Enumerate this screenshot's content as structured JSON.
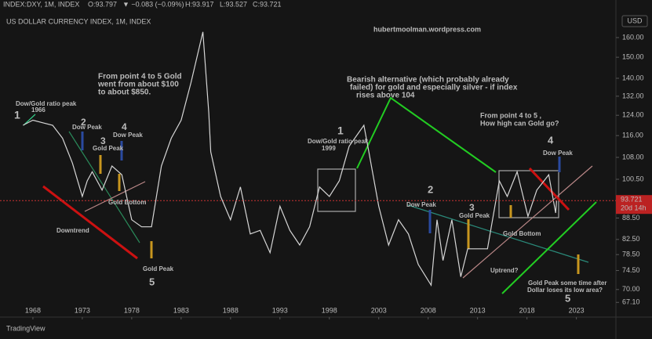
{
  "header": {
    "symbol": "INDEX:DXY, 1M, INDEX",
    "open": "O:93.797",
    "change": "▼ −0.083 (−0.09%)",
    "high": "H:93.917",
    "low": "L:93.527",
    "close": "C:93.721"
  },
  "brand": "TradingView",
  "chart_data": {
    "type": "line",
    "title": "US DOLLAR CURRENCY INDEX, 1M, INDEX",
    "source": "hubertmoolman.wordpress.com",
    "currency": "USD",
    "x": [
      1967,
      1968,
      1969,
      1970,
      1971,
      1972,
      1973,
      1973.5,
      1974,
      1975,
      1976,
      1977,
      1978,
      1979,
      1980,
      1981,
      1982,
      1983,
      1984,
      1985.2,
      1985.8,
      1986,
      1987,
      1988,
      1989,
      1990,
      1991,
      1992,
      1993,
      1994,
      1995,
      1996,
      1997,
      1998,
      1999,
      2000,
      2001.5,
      2002,
      2003,
      2004,
      2005,
      2006,
      2007,
      2008.3,
      2008.9,
      2009.5,
      2010.4,
      2011.3,
      2012,
      2013,
      2014,
      2015.2,
      2016,
      2017,
      2018.1,
      2019,
      2020.2,
      2020.9,
      2021
    ],
    "values": [
      120,
      122,
      121,
      120,
      115,
      106,
      95,
      100,
      103,
      97,
      105,
      102,
      88,
      86,
      86,
      105,
      115,
      122,
      138,
      163,
      125,
      110,
      95,
      88,
      98,
      84,
      85,
      79,
      92,
      85,
      81,
      86,
      98,
      95,
      100,
      112,
      120,
      110,
      92,
      81,
      88,
      84,
      76,
      71,
      88,
      77,
      88,
      73,
      80,
      80,
      80,
      100,
      95,
      103,
      89,
      97,
      102,
      90,
      93.7
    ],
    "color": "#d6d6d6",
    "log_scale": true,
    "ylim": [
      66.8,
      181
    ],
    "yticks": [
      {
        "value": 67.1,
        "label": "67.10"
      },
      {
        "value": 70,
        "label": "70.00"
      },
      {
        "value": 74.5,
        "label": "74.50"
      },
      {
        "value": 78.5,
        "label": "78.50"
      },
      {
        "value": 82.5,
        "label": "82.50"
      },
      {
        "value": 88.5,
        "label": "88.50"
      },
      {
        "value": 100.5,
        "label": "100.50"
      },
      {
        "value": 108,
        "label": "108.00"
      },
      {
        "value": 116,
        "label": "116.00"
      },
      {
        "value": 124,
        "label": "124.00"
      },
      {
        "value": 132,
        "label": "132.00"
      },
      {
        "value": 140,
        "label": "140.00"
      },
      {
        "value": 150,
        "label": "150.00"
      },
      {
        "value": 160,
        "label": "160.00"
      }
    ],
    "xlim": [
      1964.67,
      2027
    ],
    "xticks": [
      1968,
      1973,
      1978,
      1983,
      1988,
      1993,
      1998,
      2003,
      2008,
      2013,
      2018,
      2023
    ],
    "last_price": {
      "value": 93.721,
      "label": "93.721"
    },
    "countdown": "20d 14h",
    "annotations": [
      "1",
      "Dow/Gold ratio peak",
      "1966",
      "2",
      "Dow Peak",
      "3",
      "Gold Peak",
      "4",
      "Dow Peak",
      "Gold Bottom",
      "Downtrend",
      "Gold Peak",
      "5",
      "From point 4 to 5 Gold",
      "went from about $100",
      "to about $850.",
      "Bearish alternative (which probably already",
      "failed) for gold and especially silver - if index",
      "rises above 104",
      "1",
      "Dow/Gold ratio peak",
      "1999",
      "2",
      "Dow Peak",
      "3",
      "Gold Peak",
      "Gold Bottom",
      "Uptrend?",
      "Gold Peak some time after",
      "Dollar loses its low area?",
      "5",
      "From point 4 to 5 ,",
      "How high can Gold go?",
      "4",
      "Dow Peak"
    ]
  }
}
